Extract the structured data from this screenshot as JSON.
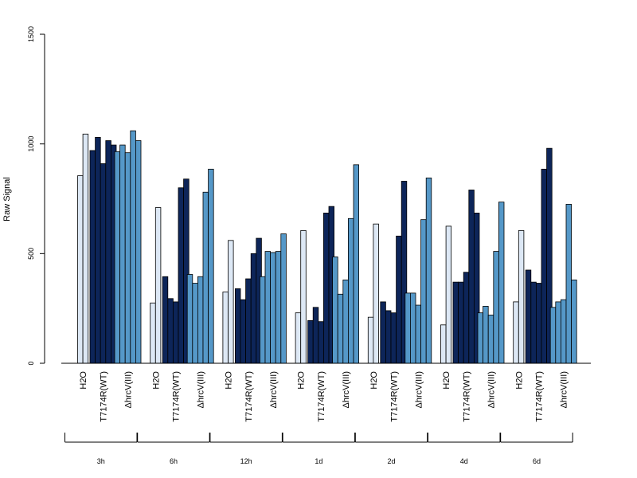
{
  "chart_data": {
    "type": "bar",
    "ylabel": "Raw Signal",
    "ylim": [
      0,
      1500
    ],
    "yticks": [
      "0",
      "500",
      "1000",
      "1500"
    ],
    "grid": false,
    "legend": "none",
    "series_names": [
      "H2O",
      "T7174R(WT)",
      "ΔhrcV(III)"
    ],
    "colors": {
      "H2O": "#dde8f5",
      "T7174R(WT)": "#0d2559",
      "ΔhrcV(III)": "#5598c8",
      "outline": "#000000"
    },
    "groups": [
      {
        "label": "3h",
        "H2O": [
          855,
          1045
        ],
        "T7174R(WT)": [
          970,
          1030,
          910,
          1015,
          995
        ],
        "ΔhrcV(III)": [
          965,
          995,
          960,
          1060,
          1015
        ]
      },
      {
        "label": "6h",
        "H2O": [
          275,
          710
        ],
        "T7174R(WT)": [
          395,
          295,
          280,
          800,
          840
        ],
        "ΔhrcV(III)": [
          405,
          365,
          395,
          780,
          885
        ]
      },
      {
        "label": "12h",
        "H2O": [
          325,
          560
        ],
        "T7174R(WT)": [
          340,
          290,
          385,
          500,
          570
        ],
        "ΔhrcV(III)": [
          395,
          510,
          505,
          510,
          590
        ]
      },
      {
        "label": "1d",
        "H2O": [
          230,
          605
        ],
        "T7174R(WT)": [
          195,
          255,
          190,
          685,
          715
        ],
        "ΔhrcV(III)": [
          485,
          315,
          380,
          660,
          905
        ]
      },
      {
        "label": "2d",
        "H2O": [
          210,
          635
        ],
        "T7174R(WT)": [
          280,
          240,
          230,
          580,
          830
        ],
        "ΔhrcV(III)": [
          320,
          320,
          265,
          655,
          845
        ]
      },
      {
        "label": "4d",
        "H2O": [
          175,
          625
        ],
        "T7174R(WT)": [
          370,
          370,
          415,
          790,
          685
        ],
        "ΔhrcV(III)": [
          230,
          260,
          220,
          510,
          735
        ]
      },
      {
        "label": "6d",
        "H2O": [
          280,
          605
        ],
        "T7174R(WT)": [
          425,
          370,
          365,
          885,
          980
        ],
        "ΔhrcV(III)": [
          255,
          280,
          290,
          725,
          380
        ]
      }
    ]
  }
}
